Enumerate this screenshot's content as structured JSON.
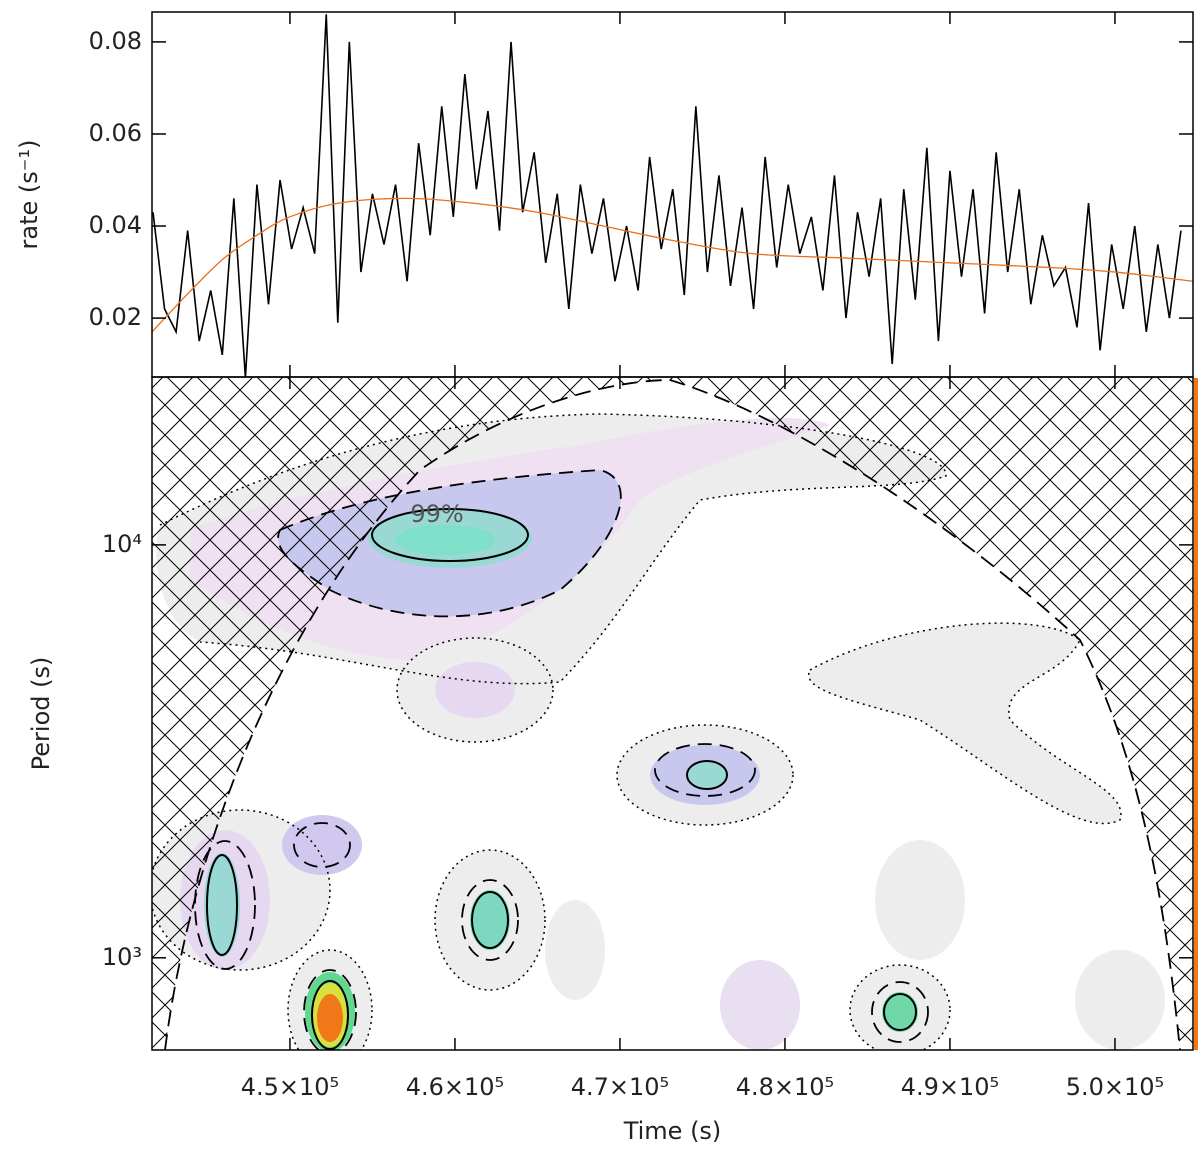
{
  "chart_data": [
    {
      "type": "line",
      "ylabel": "rate (s⁻¹)",
      "xlim": [
        441640,
        504730
      ],
      "xticks": [
        450000,
        460000,
        470000,
        480000,
        490000,
        500000
      ],
      "show_xtick_labels": false,
      "ylim": [
        0.0072,
        0.0865
      ],
      "yticks": [
        0.02,
        0.04,
        0.06,
        0.08
      ],
      "x": [
        441700,
        442400,
        443100,
        443800,
        444500,
        445200,
        445900,
        446600,
        447300,
        448000,
        448700,
        449400,
        450100,
        450800,
        451500,
        452200,
        452900,
        453600,
        454300,
        455000,
        455700,
        456400,
        457100,
        457800,
        458500,
        459200,
        459900,
        460600,
        461300,
        462000,
        462700,
        463400,
        464100,
        464800,
        465500,
        466200,
        466900,
        467600,
        468300,
        469000,
        469700,
        470400,
        471100,
        471800,
        472500,
        473200,
        473900,
        474600,
        475300,
        476000,
        476700,
        477400,
        478100,
        478800,
        479500,
        480200,
        480900,
        481600,
        482300,
        483000,
        483700,
        484400,
        485100,
        485800,
        486500,
        487200,
        487900,
        488600,
        489300,
        490000,
        490700,
        491400,
        492100,
        492800,
        493500,
        494200,
        494900,
        495600,
        496300,
        497000,
        497700,
        498400,
        499100,
        499800,
        500500,
        501200,
        501900,
        502600,
        503300,
        504000
      ],
      "series": [
        {
          "color": "#000000",
          "values": [
            0.043,
            0.022,
            0.017,
            0.039,
            0.015,
            0.026,
            0.012,
            0.046,
            0.007,
            0.049,
            0.023,
            0.05,
            0.035,
            0.044,
            0.034,
            0.086,
            0.019,
            0.08,
            0.03,
            0.047,
            0.036,
            0.049,
            0.028,
            0.058,
            0.038,
            0.066,
            0.042,
            0.073,
            0.048,
            0.065,
            0.039,
            0.08,
            0.043,
            0.056,
            0.032,
            0.047,
            0.022,
            0.049,
            0.034,
            0.046,
            0.028,
            0.04,
            0.026,
            0.055,
            0.035,
            0.048,
            0.025,
            0.066,
            0.03,
            0.051,
            0.027,
            0.044,
            0.022,
            0.055,
            0.031,
            0.049,
            0.034,
            0.042,
            0.026,
            0.051,
            0.02,
            0.043,
            0.029,
            0.046,
            0.01,
            0.048,
            0.024,
            0.057,
            0.015,
            0.052,
            0.029,
            0.048,
            0.021,
            0.056,
            0.03,
            0.048,
            0.023,
            0.038,
            0.027,
            0.031,
            0.018,
            0.045,
            0.013,
            0.036,
            0.022,
            0.04,
            0.017,
            0.036,
            0.02,
            0.039
          ]
        },
        {
          "color": "#e8701a",
          "smooth": true,
          "x": [
            441640,
            444000,
            446000,
            448000,
            450000,
            453000,
            457000,
            461000,
            465000,
            469000,
            473000,
            478000,
            484000,
            490000,
            496000,
            500000,
            504730
          ],
          "values": [
            0.017,
            0.026,
            0.033,
            0.038,
            0.042,
            0.045,
            0.046,
            0.045,
            0.043,
            0.04,
            0.037,
            0.034,
            0.033,
            0.032,
            0.031,
            0.03,
            0.028
          ]
        }
      ]
    },
    {
      "type": "wavelet",
      "xlabel": "Time (s)",
      "ylabel": "Period (s)",
      "annotation": "99%",
      "xlim": [
        441640,
        504730
      ],
      "xticks": [
        {
          "value": 450000,
          "label": "4.5×10⁵"
        },
        {
          "value": 460000,
          "label": "4.6×10⁵"
        },
        {
          "value": 470000,
          "label": "4.7×10⁵"
        },
        {
          "value": 480000,
          "label": "4.8×10⁵"
        },
        {
          "value": 490000,
          "label": "4.9×10⁵"
        },
        {
          "value": 500000,
          "label": "5.0×10⁵"
        }
      ],
      "ylim": [
        598,
        25500
      ],
      "log_y": true,
      "yticks": [
        {
          "value": 1000,
          "label": "10³"
        },
        {
          "value": 10000,
          "label": "10⁴"
        }
      ]
    }
  ]
}
